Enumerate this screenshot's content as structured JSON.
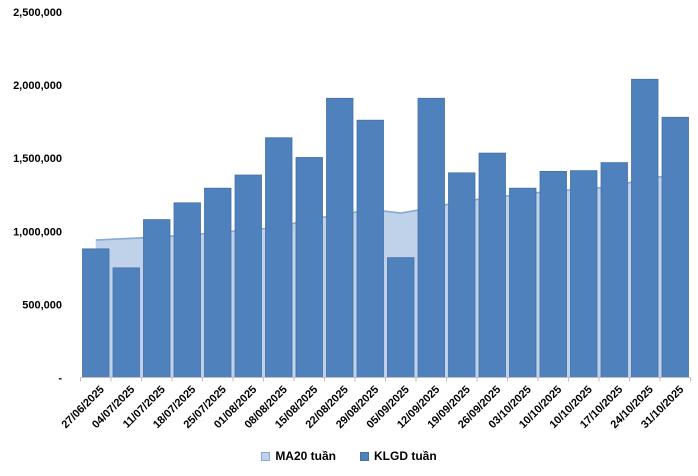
{
  "chart_data": {
    "type": "bar",
    "title": "",
    "xlabel": "",
    "ylabel": "",
    "categories": [
      "27/06/2025",
      "04/07/2025",
      "11/07/2025",
      "18/07/2025",
      "25/07/2025",
      "01/08/2025",
      "08/08/2025",
      "15/08/2025",
      "22/08/2025",
      "29/08/2025",
      "05/09/2025",
      "12/09/2025",
      "19/09/2025",
      "26/09/2025",
      "03/10/2025",
      "10/10/2025",
      "10/10/2025",
      "17/10/2025",
      "24/10/2025",
      "31/10/2025"
    ],
    "series": [
      {
        "name": "MA20 tuần",
        "render": "area",
        "fill_color": "#BFD2E9",
        "line_color": "#87A9D4",
        "values": [
          940000,
          950000,
          960000,
          975000,
          990000,
          1010000,
          1025000,
          1085000,
          1110000,
          1150000,
          1125000,
          1160000,
          1205000,
          1230000,
          1255000,
          1275000,
          1290000,
          1305000,
          1360000,
          1385000
        ]
      },
      {
        "name": "KLGD tuần",
        "render": "bar",
        "fill_color": "#4F81BD",
        "border_color": "#416FA6",
        "values": [
          880000,
          750000,
          1080000,
          1195000,
          1295000,
          1385000,
          1640000,
          1505000,
          1910000,
          1760000,
          820000,
          1910000,
          1400000,
          1535000,
          1295000,
          1410000,
          1415000,
          1470000,
          2040000,
          1780000
        ]
      }
    ],
    "ylim": [
      0,
      2500000
    ],
    "ytick_interval": 500000,
    "ytick_labels": [
      "-",
      "500,000",
      "1,000,000",
      "1,500,000",
      "2,000,000",
      "2,500,000"
    ],
    "grid": false,
    "legend_position": "bottom",
    "axis_color": "#BFBFBF"
  },
  "legend": {
    "ma20_label": "MA20 tuần",
    "klgd_label": "KLGD tuần"
  }
}
